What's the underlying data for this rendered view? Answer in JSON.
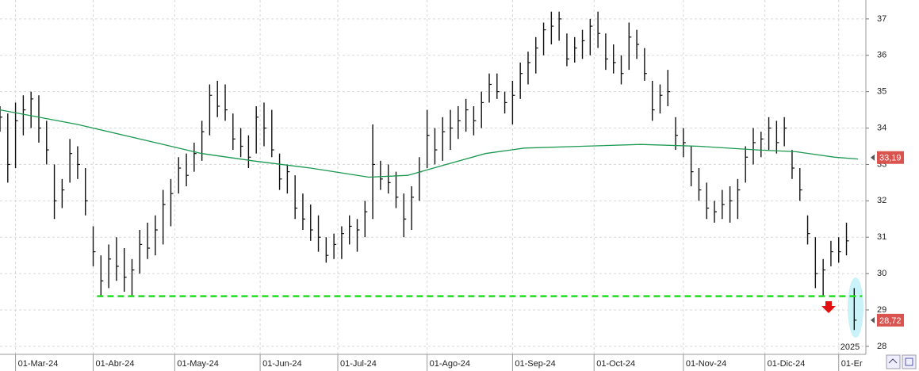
{
  "chart_data": {
    "type": "ohlc",
    "x": [
      0,
      2,
      4,
      6,
      8,
      10,
      12,
      14,
      16,
      18,
      20,
      22,
      24,
      26,
      28,
      30,
      32,
      34,
      36,
      38,
      40,
      42,
      44,
      46,
      48,
      50,
      52,
      54,
      56,
      58,
      60,
      62,
      64,
      66,
      68,
      70,
      72,
      74,
      76,
      78,
      80,
      82,
      84,
      86,
      88,
      90,
      92,
      94,
      96,
      98,
      100,
      102,
      104,
      106,
      108,
      110,
      112,
      114,
      116,
      118,
      120,
      122,
      124,
      126,
      128,
      130,
      132,
      134,
      136,
      138,
      140,
      142,
      144,
      146,
      148,
      150,
      152,
      154,
      156,
      158,
      160,
      162,
      164,
      166,
      168,
      170,
      172,
      174,
      176,
      178,
      180,
      182,
      184,
      186,
      188,
      190,
      192,
      194,
      196,
      198,
      200,
      202,
      204,
      206,
      208,
      210,
      212,
      214,
      216,
      218,
      220
    ],
    "high": [
      34.6,
      34.4,
      34.7,
      34.9,
      35.0,
      34.9,
      34.2,
      33.0,
      32.6,
      33.7,
      33.5,
      32.9,
      31.3,
      30.5,
      30.8,
      31.0,
      30.7,
      30.4,
      31.2,
      31.4,
      31.6,
      32.3,
      32.6,
      33.2,
      33.3,
      33.6,
      34.2,
      35.2,
      35.3,
      35.2,
      34.4,
      34.0,
      33.8,
      34.6,
      34.7,
      34.5,
      33.3,
      33.0,
      32.7,
      32.2,
      31.9,
      31.6,
      31.0,
      31.1,
      31.3,
      31.6,
      31.5,
      32.0,
      34.1,
      33.1,
      33.0,
      32.8,
      32.2,
      32.4,
      33.2,
      34.5,
      34.0,
      34.3,
      34.5,
      34.6,
      34.8,
      34.6,
      35.0,
      35.5,
      35.5,
      35.0,
      35.3,
      35.8,
      36.1,
      36.5,
      36.9,
      37.2,
      37.2,
      36.6,
      36.5,
      36.7,
      37.0,
      37.2,
      36.6,
      36.3,
      36.0,
      36.9,
      36.7,
      36.2,
      35.3,
      35.2,
      35.6,
      34.3,
      34.0,
      33.5,
      32.9,
      32.5,
      32.0,
      32.3,
      32.4,
      32.6,
      33.5,
      34.0,
      33.9,
      34.3,
      34.2,
      34.3,
      33.4,
      32.9,
      31.6,
      31.0,
      30.4,
      30.9,
      31.0,
      31.4,
      29.6
    ],
    "low": [
      33.9,
      32.5,
      32.9,
      33.8,
      34.0,
      33.6,
      33.0,
      31.5,
      31.8,
      32.5,
      32.6,
      31.6,
      30.2,
      29.4,
      29.6,
      29.8,
      29.5,
      29.4,
      30.0,
      30.4,
      30.5,
      30.8,
      31.3,
      32.2,
      32.4,
      32.8,
      33.1,
      33.8,
      34.3,
      34.2,
      33.4,
      33.2,
      32.9,
      33.3,
      33.5,
      33.2,
      32.3,
      32.2,
      31.5,
      31.2,
      30.9,
      30.6,
      30.3,
      30.4,
      30.4,
      30.8,
      30.6,
      31.0,
      31.5,
      32.3,
      32.2,
      31.8,
      31.0,
      31.2,
      32.0,
      32.9,
      33.0,
      33.1,
      33.4,
      33.7,
      33.9,
      33.8,
      34.0,
      34.7,
      34.8,
      34.4,
      34.1,
      34.8,
      35.2,
      35.5,
      36.0,
      36.3,
      36.4,
      35.7,
      35.8,
      35.9,
      36.0,
      36.2,
      35.6,
      35.5,
      35.2,
      35.6,
      35.9,
      35.3,
      34.2,
      34.4,
      34.6,
      33.4,
      33.2,
      32.4,
      32.0,
      31.5,
      31.4,
      31.5,
      31.4,
      31.5,
      32.5,
      33.0,
      33.2,
      33.4,
      33.3,
      33.5,
      32.6,
      32.0,
      30.8,
      29.6,
      29.4,
      30.2,
      30.3,
      30.5,
      28.45
    ],
    "close": [
      34.3,
      33.0,
      34.2,
      34.5,
      34.8,
      34.0,
      33.4,
      32.0,
      32.3,
      33.3,
      33.0,
      32.0,
      30.6,
      29.8,
      30.4,
      30.2,
      29.9,
      30.1,
      30.8,
      30.7,
      31.2,
      31.9,
      32.2,
      32.9,
      32.7,
      33.3,
      33.9,
      34.9,
      34.6,
      34.5,
      33.7,
      33.5,
      33.2,
      34.3,
      34.0,
      33.4,
      32.6,
      32.8,
      31.8,
      31.5,
      31.2,
      31.0,
      30.5,
      30.8,
      31.1,
      31.3,
      31.2,
      31.7,
      33.0,
      32.6,
      32.5,
      32.1,
      31.5,
      32.1,
      32.8,
      33.8,
      33.4,
      33.9,
      34.0,
      34.2,
      34.5,
      34.2,
      34.7,
      35.2,
      35.0,
      34.7,
      34.9,
      35.5,
      35.8,
      36.2,
      36.7,
      36.8,
      37.0,
      35.9,
      36.2,
      36.4,
      36.8,
      36.6,
      35.9,
      35.8,
      35.5,
      36.5,
      36.3,
      35.5,
      34.5,
      34.9,
      35.0,
      33.8,
      33.6,
      32.8,
      32.3,
      31.8,
      31.7,
      31.9,
      32.0,
      32.3,
      33.2,
      33.6,
      33.7,
      34.0,
      33.6,
      34.0,
      32.9,
      32.3,
      31.1,
      30.0,
      30.1,
      30.6,
      30.6,
      30.9,
      28.72
    ],
    "bar_color": "#111111",
    "ma": {
      "x": [
        0,
        20,
        40,
        52,
        65,
        80,
        95,
        105,
        115,
        125,
        135,
        150,
        165,
        180,
        195,
        205,
        215,
        221
      ],
      "values": [
        34.5,
        34.1,
        33.6,
        33.3,
        33.1,
        32.9,
        32.65,
        32.7,
        33.0,
        33.3,
        33.45,
        33.5,
        33.55,
        33.5,
        33.4,
        33.35,
        33.2,
        33.15
      ],
      "color": "#1a9850"
    },
    "support": {
      "value": 29.38,
      "x": [
        25,
        222
      ],
      "color": "#22dd22"
    },
    "ma_label": {
      "value": 33.19,
      "label": "33,19"
    },
    "last_price": {
      "value": 28.72,
      "label": "28,72"
    },
    "year_label": "2025",
    "xlim": [
      0,
      223
    ],
    "ylim": [
      27.78,
      37.52
    ],
    "yticks": [
      28,
      29,
      30,
      31,
      32,
      33,
      34,
      35,
      36,
      37
    ],
    "xticks": [
      {
        "value": 4,
        "label": "01-Mar-24"
      },
      {
        "value": 24,
        "label": "01-Abr-24"
      },
      {
        "value": 45,
        "label": "01-May-24"
      },
      {
        "value": 67,
        "label": "01-Jun-24"
      },
      {
        "value": 87,
        "label": "01-Jul-24"
      },
      {
        "value": 110,
        "label": "01-Ago-24"
      },
      {
        "value": 132,
        "label": "01-Sep-24"
      },
      {
        "value": 153,
        "label": "01-Oct-24"
      },
      {
        "value": 176,
        "label": "01-Nov-24"
      },
      {
        "value": 197,
        "label": "01-Dic-24"
      },
      {
        "value": 216,
        "label": "01-Er"
      }
    ],
    "grid": true
  }
}
